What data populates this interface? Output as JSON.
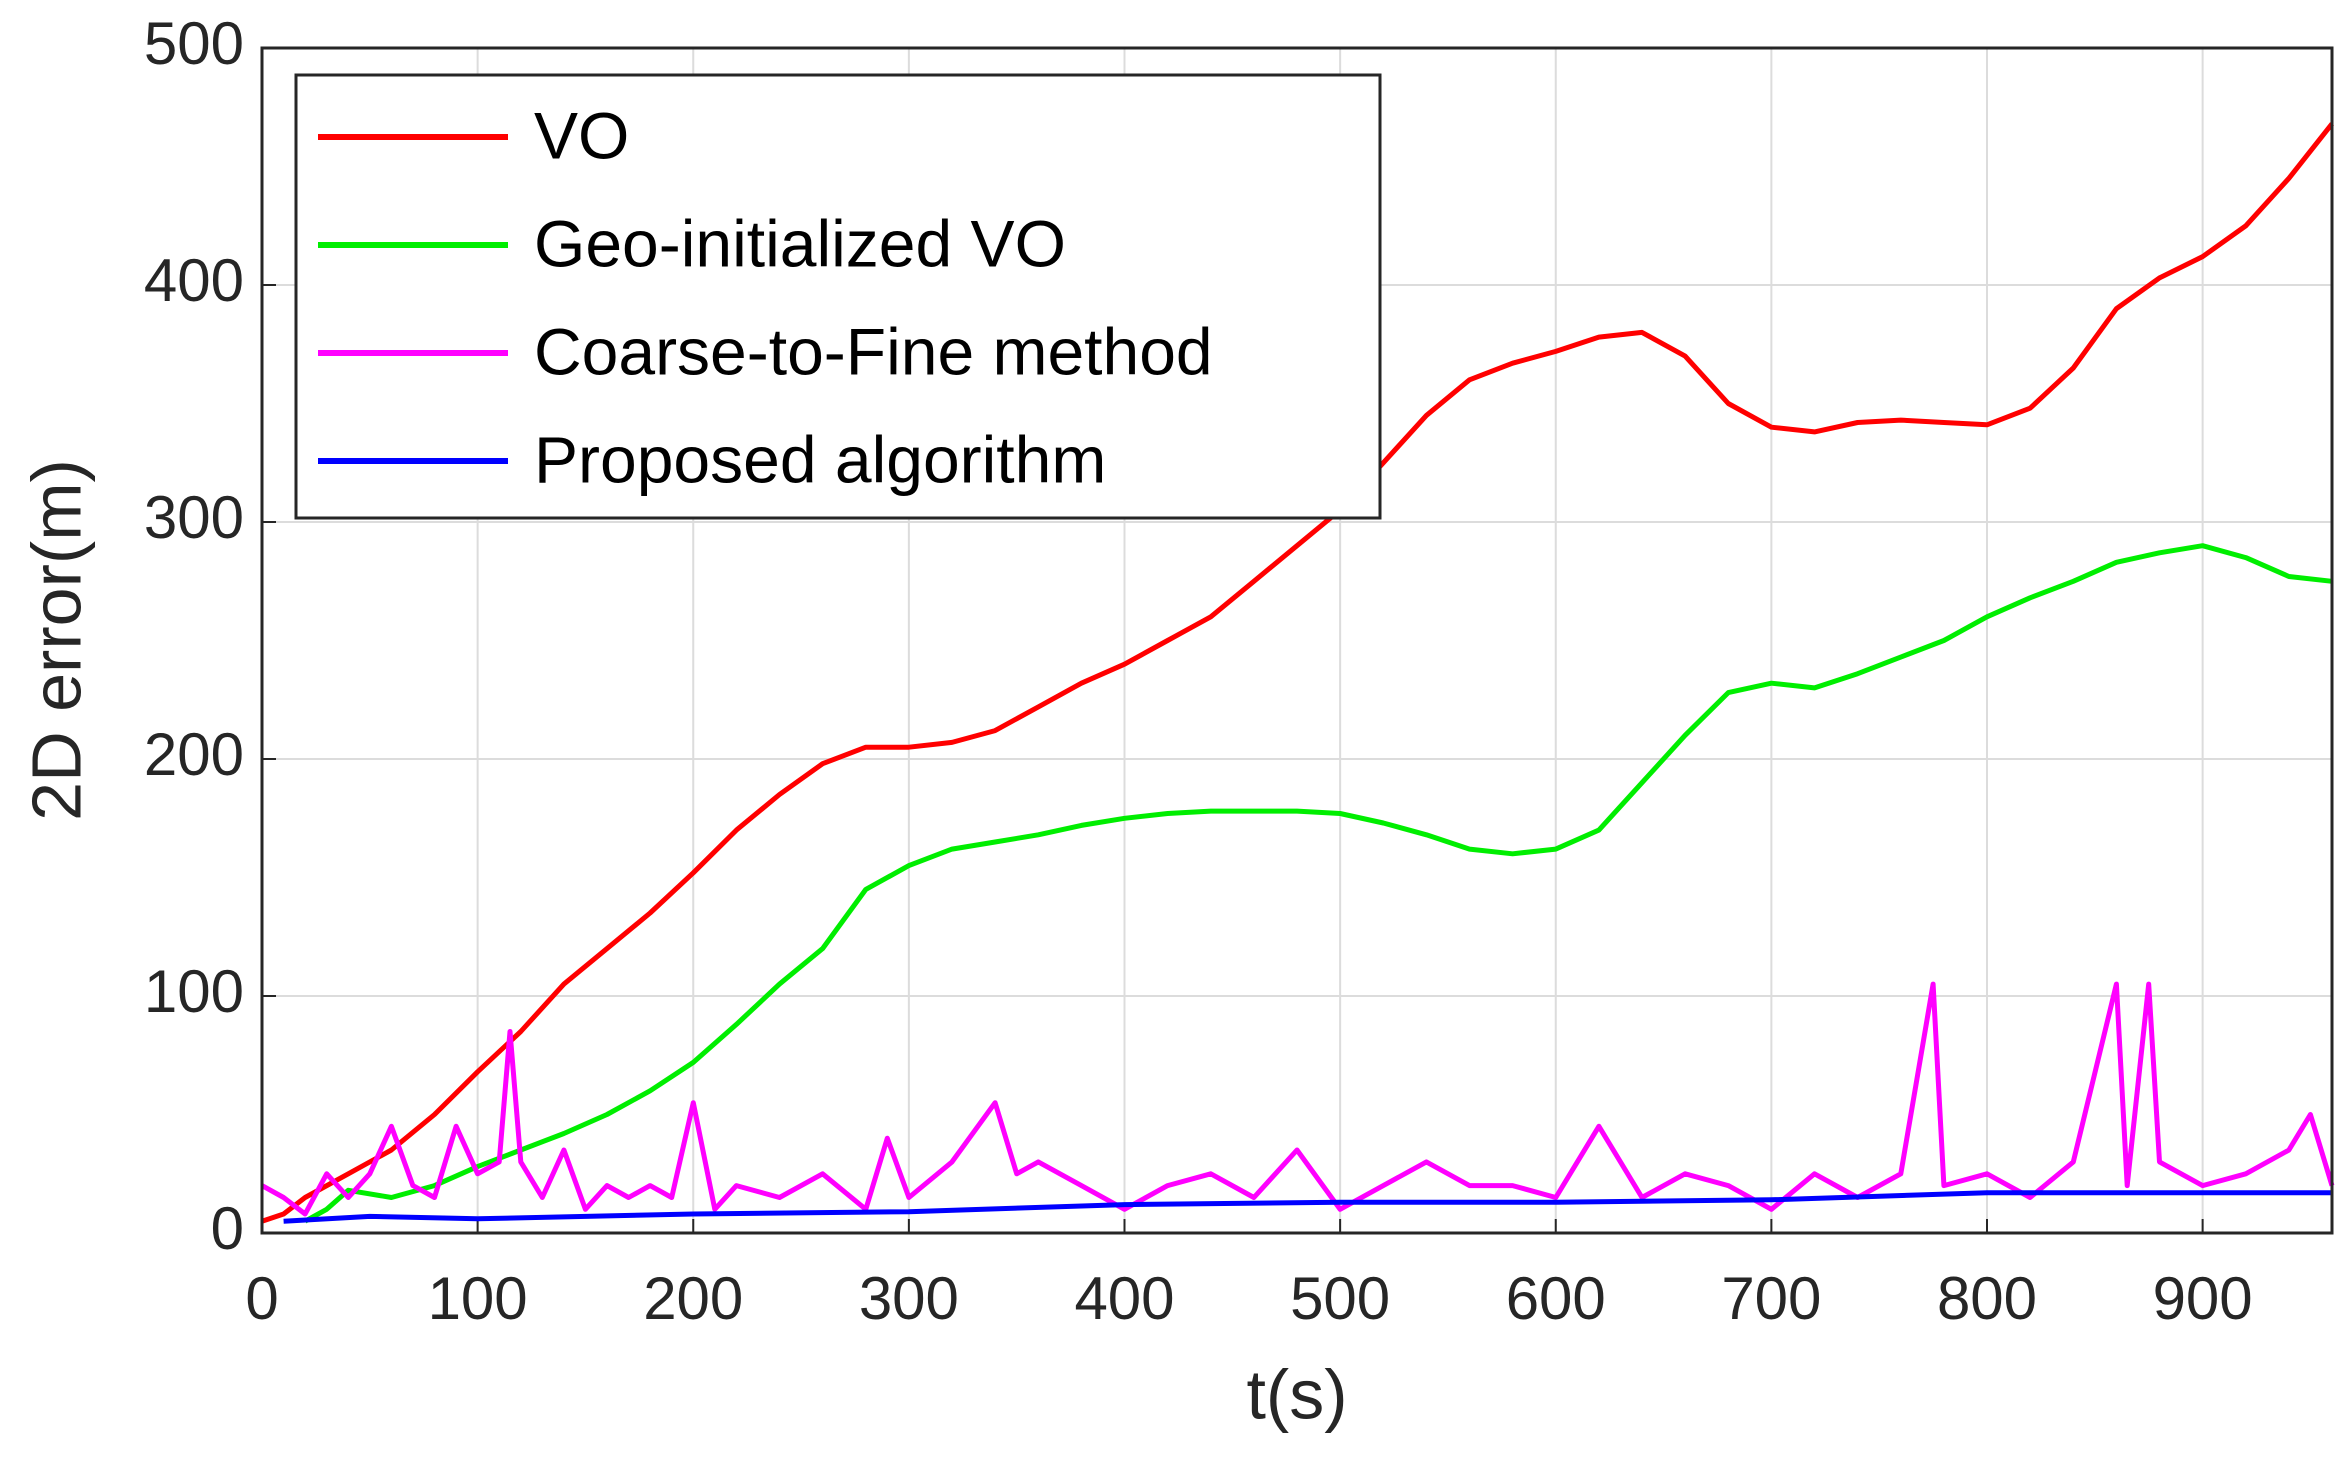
{
  "chart_data": {
    "type": "line",
    "x_label": "t(s)",
    "y_label": "2D error(m)",
    "xlim": [
      0,
      960
    ],
    "ylim": [
      0,
      500
    ],
    "xticks": [
      0,
      100,
      200,
      300,
      400,
      500,
      600,
      700,
      800,
      900
    ],
    "yticks": [
      0,
      100,
      200,
      300,
      400,
      500
    ],
    "grid": true,
    "legend": "upper left",
    "series": [
      {
        "name": "VO",
        "color": "#ff0000",
        "x": [
          0,
          10,
          20,
          40,
          60,
          80,
          100,
          120,
          140,
          160,
          180,
          200,
          220,
          240,
          260,
          280,
          300,
          320,
          340,
          360,
          380,
          400,
          420,
          440,
          460,
          480,
          500,
          520,
          540,
          560,
          580,
          600,
          620,
          640,
          660,
          680,
          700,
          720,
          740,
          760,
          780,
          800,
          820,
          840,
          860,
          880,
          900,
          920,
          940,
          960
        ],
        "values": [
          5,
          8,
          15,
          25,
          35,
          50,
          68,
          85,
          105,
          120,
          135,
          152,
          170,
          185,
          198,
          205,
          205,
          207,
          212,
          222,
          232,
          240,
          250,
          260,
          275,
          290,
          305,
          325,
          345,
          360,
          367,
          372,
          378,
          380,
          370,
          350,
          340,
          338,
          342,
          343,
          342,
          341,
          348,
          365,
          390,
          403,
          412,
          425,
          445,
          468
        ]
      },
      {
        "name": "Geo-initialized VO",
        "color": "#00ee00",
        "x": [
          20,
          30,
          40,
          60,
          80,
          100,
          120,
          140,
          160,
          180,
          200,
          220,
          240,
          260,
          280,
          300,
          320,
          340,
          360,
          380,
          400,
          420,
          440,
          460,
          480,
          500,
          520,
          540,
          560,
          580,
          600,
          620,
          640,
          660,
          680,
          700,
          720,
          740,
          760,
          780,
          800,
          820,
          840,
          860,
          880,
          900,
          920,
          940,
          960
        ],
        "values": [
          5,
          10,
          18,
          15,
          20,
          28,
          35,
          42,
          50,
          60,
          72,
          88,
          105,
          120,
          145,
          155,
          162,
          165,
          168,
          172,
          175,
          177,
          178,
          178,
          178,
          177,
          173,
          168,
          162,
          160,
          162,
          170,
          190,
          210,
          228,
          232,
          230,
          236,
          243,
          250,
          260,
          268,
          275,
          283,
          287,
          290,
          285,
          277,
          275
        ]
      },
      {
        "name": "Coarse-to-Fine method",
        "color": "#ff00ff",
        "x": [
          0,
          10,
          20,
          30,
          40,
          50,
          60,
          70,
          80,
          90,
          100,
          110,
          115,
          120,
          130,
          140,
          150,
          160,
          170,
          180,
          190,
          200,
          210,
          220,
          240,
          260,
          280,
          290,
          300,
          320,
          340,
          350,
          360,
          380,
          400,
          420,
          440,
          460,
          480,
          500,
          520,
          540,
          560,
          580,
          600,
          620,
          640,
          660,
          680,
          700,
          720,
          740,
          760,
          775,
          780,
          800,
          820,
          840,
          860,
          865,
          875,
          880,
          900,
          920,
          940,
          950,
          960
        ],
        "values": [
          20,
          15,
          8,
          25,
          15,
          25,
          45,
          20,
          15,
          45,
          25,
          30,
          85,
          30,
          15,
          35,
          10,
          20,
          15,
          20,
          15,
          55,
          10,
          20,
          15,
          25,
          10,
          40,
          15,
          30,
          55,
          25,
          30,
          20,
          10,
          20,
          25,
          15,
          35,
          10,
          20,
          30,
          20,
          20,
          15,
          45,
          15,
          25,
          20,
          10,
          25,
          15,
          25,
          105,
          20,
          25,
          15,
          30,
          105,
          20,
          105,
          30,
          20,
          25,
          35,
          50,
          20
        ]
      },
      {
        "name": "Proposed algorithm",
        "color": "#0000ff",
        "x": [
          10,
          50,
          100,
          200,
          300,
          400,
          500,
          600,
          700,
          800,
          900,
          960
        ],
        "values": [
          5,
          7,
          6,
          8,
          9,
          12,
          13,
          13,
          14,
          17,
          17,
          17
        ]
      }
    ]
  }
}
